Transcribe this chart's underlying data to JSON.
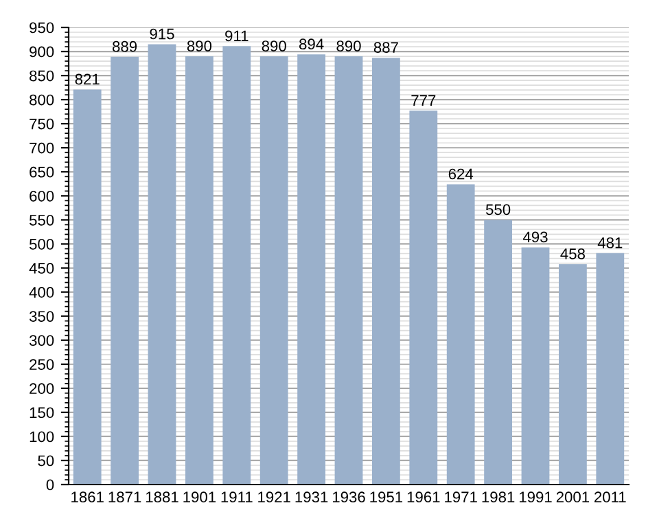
{
  "chart_data": {
    "type": "bar",
    "categories": [
      "1861",
      "1871",
      "1881",
      "1901",
      "1911",
      "1921",
      "1931",
      "1936",
      "1951",
      "1961",
      "1971",
      "1981",
      "1991",
      "2001",
      "2011"
    ],
    "values": [
      821,
      889,
      915,
      890,
      911,
      890,
      894,
      890,
      887,
      777,
      624,
      550,
      493,
      458,
      481
    ],
    "color": "#9ab0cb",
    "data_labels": true,
    "ylim": [
      0,
      950
    ],
    "yticks": [
      0,
      {
        "value": 10,
        "label": null
      },
      {
        "value": 20,
        "label": null
      },
      {
        "value": 30,
        "label": null
      },
      {
        "value": 40,
        "label": null
      },
      50,
      {
        "value": 60,
        "label": null
      },
      {
        "value": 70,
        "label": null
      },
      {
        "value": 80,
        "label": null
      },
      {
        "value": 90,
        "label": null
      },
      100,
      {
        "value": 110,
        "label": null
      },
      {
        "value": 120,
        "label": null
      },
      {
        "value": 130,
        "label": null
      },
      {
        "value": 140,
        "label": null
      },
      150,
      {
        "value": 160,
        "label": null
      },
      {
        "value": 170,
        "label": null
      },
      {
        "value": 180,
        "label": null
      },
      {
        "value": 190,
        "label": null
      },
      200,
      {
        "value": 210,
        "label": null
      },
      {
        "value": 220,
        "label": null
      },
      {
        "value": 230,
        "label": null
      },
      {
        "value": 240,
        "label": null
      },
      250,
      {
        "value": 260,
        "label": null
      },
      {
        "value": 270,
        "label": null
      },
      {
        "value": 280,
        "label": null
      },
      {
        "value": 290,
        "label": null
      },
      300,
      {
        "value": 310,
        "label": null
      },
      {
        "value": 320,
        "label": null
      },
      {
        "value": 330,
        "label": null
      },
      {
        "value": 340,
        "label": null
      },
      350,
      {
        "value": 360,
        "label": null
      },
      {
        "value": 370,
        "label": null
      },
      {
        "value": 380,
        "label": null
      },
      {
        "value": 390,
        "label": null
      },
      400,
      {
        "value": 410,
        "label": null
      },
      {
        "value": 420,
        "label": null
      },
      {
        "value": 430,
        "label": null
      },
      {
        "value": 440,
        "label": null
      },
      450,
      {
        "value": 460,
        "label": null
      },
      {
        "value": 470,
        "label": null
      },
      {
        "value": 480,
        "label": null
      },
      {
        "value": 490,
        "label": null
      },
      500,
      {
        "value": 510,
        "label": null
      },
      {
        "value": 520,
        "label": null
      },
      {
        "value": 530,
        "label": null
      },
      {
        "value": 540,
        "label": null
      },
      550,
      {
        "value": 560,
        "label": null
      },
      {
        "value": 570,
        "label": null
      },
      {
        "value": 580,
        "label": null
      },
      {
        "value": 590,
        "label": null
      },
      600,
      {
        "value": 610,
        "label": null
      },
      {
        "value": 620,
        "label": null
      },
      {
        "value": 630,
        "label": null
      },
      {
        "value": 640,
        "label": null
      },
      650,
      {
        "value": 660,
        "label": null
      },
      {
        "value": 670,
        "label": null
      },
      {
        "value": 680,
        "label": null
      },
      {
        "value": 690,
        "label": null
      },
      700,
      {
        "value": 710,
        "label": null
      },
      {
        "value": 720,
        "label": null
      },
      {
        "value": 730,
        "label": null
      },
      {
        "value": 740,
        "label": null
      },
      750,
      {
        "value": 760,
        "label": null
      },
      {
        "value": 770,
        "label": null
      },
      {
        "value": 780,
        "label": null
      },
      {
        "value": 790,
        "label": null
      },
      800,
      {
        "value": 810,
        "label": null
      },
      {
        "value": 820,
        "label": null
      },
      {
        "value": 830,
        "label": null
      },
      {
        "value": 840,
        "label": null
      },
      850,
      {
        "value": 860,
        "label": null
      },
      {
        "value": 870,
        "label": null
      },
      {
        "value": 880,
        "label": null
      },
      {
        "value": 890,
        "label": null
      },
      900,
      {
        "value": 910,
        "label": null
      },
      {
        "value": 920,
        "label": null
      },
      {
        "value": 930,
        "label": null
      },
      {
        "value": 940,
        "label": null
      },
      950
    ],
    "grid": "y"
  }
}
